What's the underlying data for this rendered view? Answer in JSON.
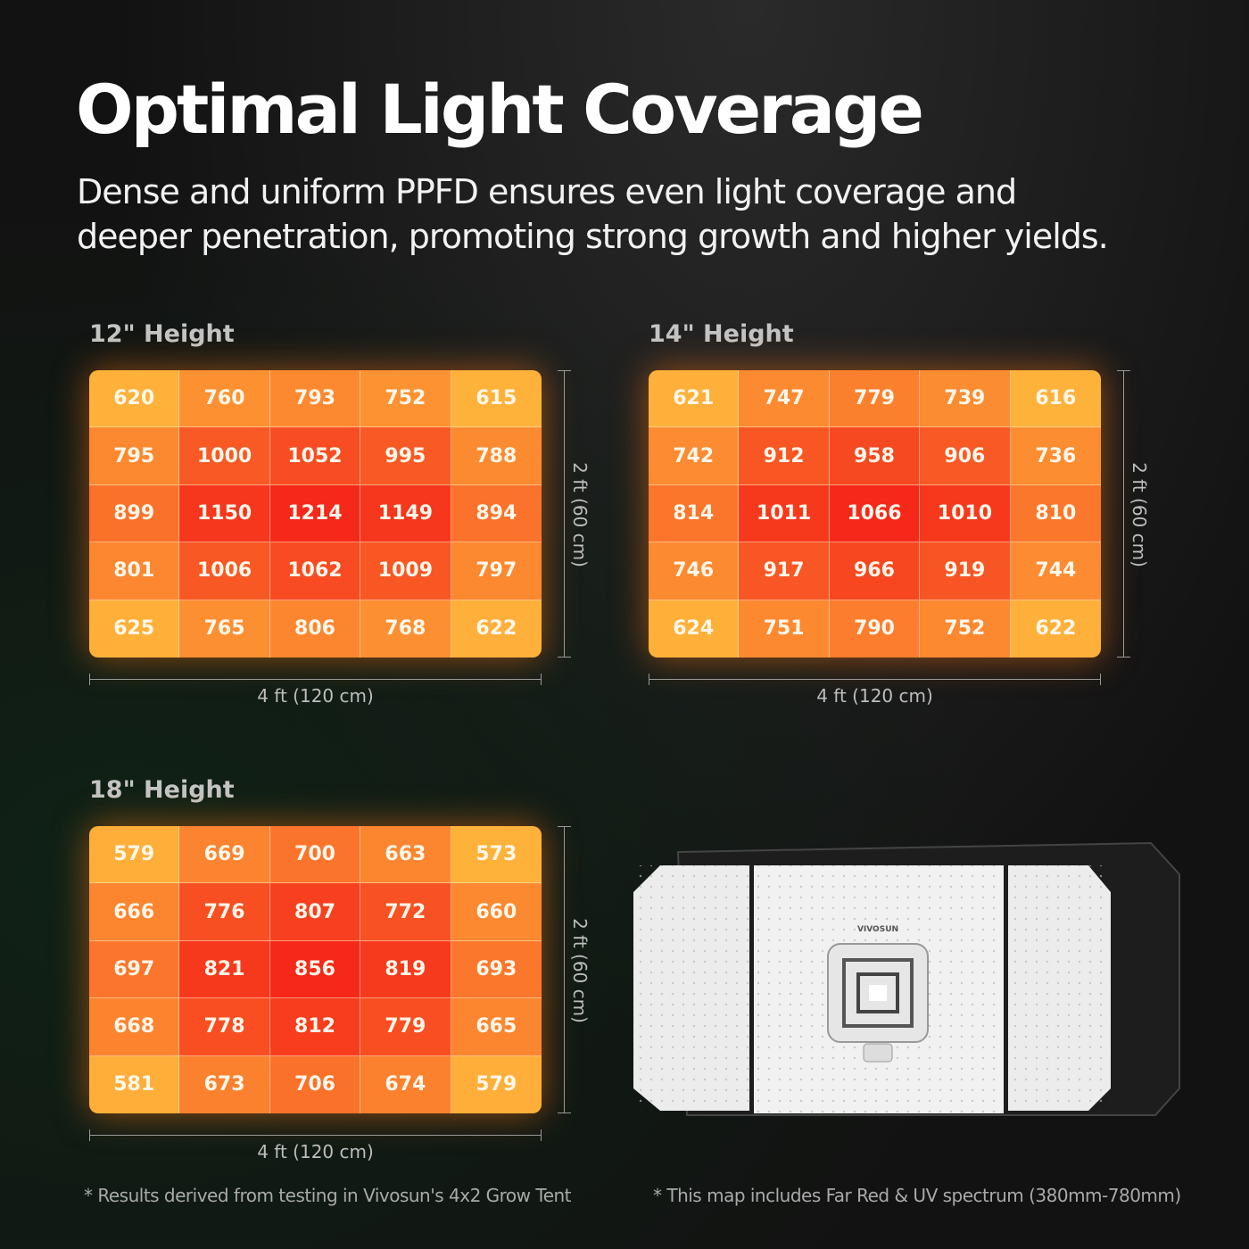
{
  "header": {
    "title": "Optimal Light Coverage",
    "subtitle_lines": [
      "Dense and uniform PPFD ensures even light coverage and",
      "deeper penetration, promoting strong growth and higher yields."
    ]
  },
  "maps": [
    {
      "title": "12\" Height",
      "width_label": "4 ft (120 cm)",
      "height_label": "2 ft (60 cm)",
      "rows": [
        [
          620,
          760,
          793,
          752,
          615
        ],
        [
          795,
          1000,
          1052,
          995,
          788
        ],
        [
          899,
          1150,
          1214,
          1149,
          894
        ],
        [
          801,
          1006,
          1062,
          1009,
          797
        ],
        [
          625,
          765,
          806,
          768,
          622
        ]
      ]
    },
    {
      "title": "14\" Height",
      "width_label": "4 ft (120 cm)",
      "height_label": "2 ft (60 cm)",
      "rows": [
        [
          621,
          747,
          779,
          739,
          616
        ],
        [
          742,
          912,
          958,
          906,
          736
        ],
        [
          814,
          1011,
          1066,
          1010,
          810
        ],
        [
          746,
          917,
          966,
          919,
          744
        ],
        [
          624,
          751,
          790,
          752,
          622
        ]
      ]
    },
    {
      "title": "18\" Height",
      "width_label": "4 ft (120 cm)",
      "height_label": "2 ft (60 cm)",
      "rows": [
        [
          579,
          669,
          700,
          663,
          573
        ],
        [
          666,
          776,
          807,
          772,
          660
        ],
        [
          697,
          821,
          856,
          819,
          693
        ],
        [
          668,
          778,
          812,
          779,
          665
        ],
        [
          581,
          673,
          706,
          674,
          579
        ]
      ]
    }
  ],
  "product": {
    "brand": "VIVOSUN"
  },
  "footnotes": [
    "* Results derived from testing in Vivosun's 4x2 Grow Tent",
    "* This map includes Far Red & UV spectrum (380mm-780mm)"
  ]
}
